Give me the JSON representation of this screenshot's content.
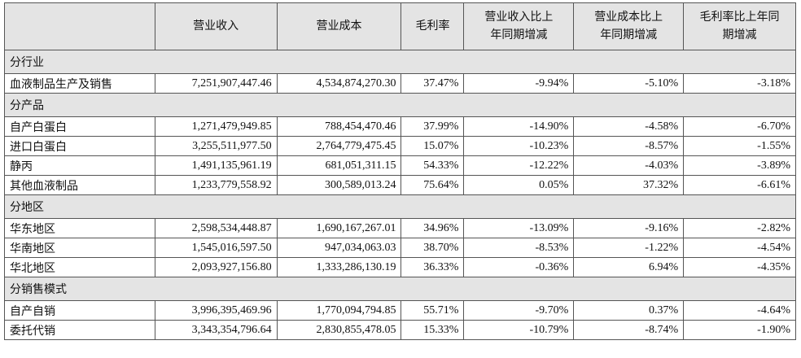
{
  "table": {
    "header": [
      "",
      "营业收入",
      "营业成本",
      "毛利率",
      "营业收入比上年同期增减",
      "营业成本比上年同期增减",
      "毛利率比上年同期增减"
    ],
    "sections": [
      {
        "title": "分行业",
        "rows": [
          [
            "血液制品生产及销售",
            "7,251,907,447.46",
            "4,534,874,270.30",
            "37.47%",
            "-9.94%",
            "-5.10%",
            "-3.18%"
          ]
        ]
      },
      {
        "title": "分产品",
        "rows": [
          [
            "自产白蛋白",
            "1,271,479,949.85",
            "788,454,470.46",
            "37.99%",
            "-14.90%",
            "-4.58%",
            "-6.70%"
          ],
          [
            "进口白蛋白",
            "3,255,511,977.50",
            "2,764,779,475.45",
            "15.07%",
            "-10.23%",
            "-8.57%",
            "-1.55%"
          ],
          [
            "静丙",
            "1,491,135,961.19",
            "681,051,311.15",
            "54.33%",
            "-12.22%",
            "-4.03%",
            "-3.89%"
          ],
          [
            "其他血液制品",
            "1,233,779,558.92",
            "300,589,013.24",
            "75.64%",
            "0.05%",
            "37.32%",
            "-6.61%"
          ]
        ]
      },
      {
        "title": "分地区",
        "rows": [
          [
            "华东地区",
            "2,598,534,448.87",
            "1,690,167,267.01",
            "34.96%",
            "-13.09%",
            "-9.16%",
            "-2.82%"
          ],
          [
            "华南地区",
            "1,545,016,597.50",
            "947,034,063.03",
            "38.70%",
            "-8.53%",
            "-1.22%",
            "-4.54%"
          ],
          [
            "华北地区",
            "2,093,927,156.80",
            "1,333,286,130.19",
            "36.33%",
            "-0.36%",
            "6.94%",
            "-4.35%"
          ]
        ]
      },
      {
        "title": "分销售模式",
        "rows": [
          [
            "自产自销",
            "3,996,395,469.96",
            "1,770,094,794.85",
            "55.71%",
            "-9.70%",
            "0.37%",
            "-4.64%"
          ],
          [
            "委托代销",
            "3,343,354,796.64",
            "2,830,855,478.05",
            "15.33%",
            "-10.79%",
            "-8.74%",
            "-1.90%"
          ]
        ]
      }
    ]
  }
}
